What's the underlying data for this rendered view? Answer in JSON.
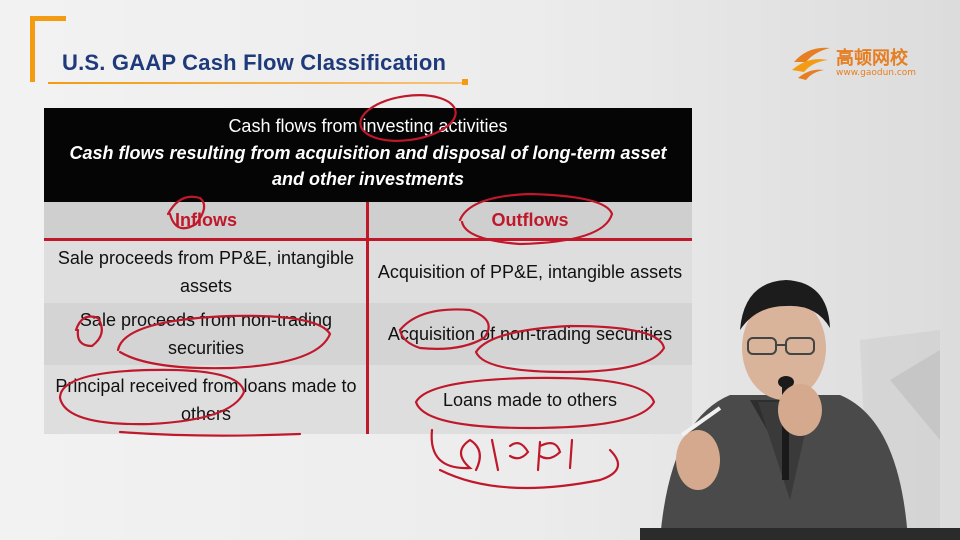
{
  "slide": {
    "title": "U.S. GAAP Cash Flow Classification"
  },
  "logo": {
    "name": "高顿网校",
    "url": "www.gaodun.com"
  },
  "table": {
    "header_title": "Cash flows from investing activities",
    "header_subtitle": "Cash flows resulting from acquisition and disposal of long-term asset and other investments",
    "col_inflows": "Inflows",
    "col_outflows": "Outflows",
    "rows": [
      {
        "inflow": "Sale proceeds from PP&E, intangible assets",
        "outflow": "Acquisition of PP&E, intangible assets"
      },
      {
        "inflow": "Sale proceeds from non-trading securities",
        "outflow": "Acquisition of non-trading securities"
      },
      {
        "inflow": "Principal received from loans made to others",
        "outflow": "Loans made to others"
      }
    ]
  },
  "colors": {
    "title": "#1f3a7a",
    "accent": "#f39c12",
    "table_header_bg": "#050505",
    "annotation_red": "#c0182b"
  }
}
